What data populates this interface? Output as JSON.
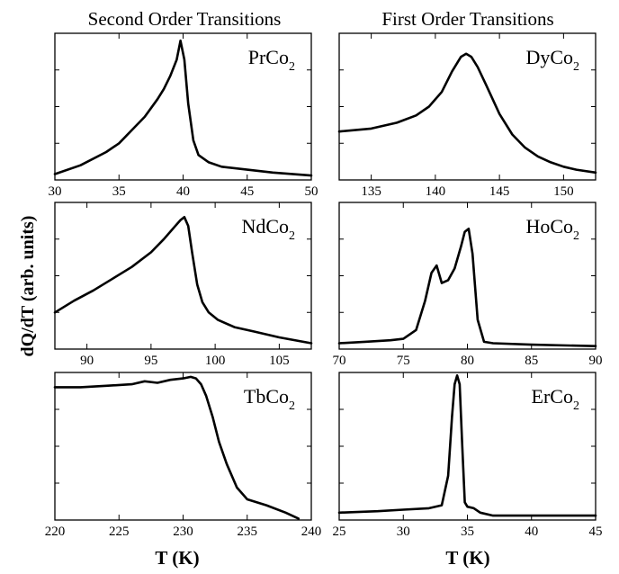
{
  "figure": {
    "column_titles": [
      "Second Order Transitions",
      "First Order Transitions"
    ],
    "y_label": "dQ/dT (arb. units)",
    "x_label": "T (K)"
  },
  "chart_data": [
    {
      "type": "line",
      "panel": "PrCo2",
      "label_main": "PrCo",
      "label_sub": "2",
      "xlim": [
        30,
        50
      ],
      "xticks": [
        30,
        35,
        40,
        45,
        50
      ],
      "ylim": [
        0,
        1
      ],
      "grid": false,
      "x": [
        30,
        32,
        34,
        35,
        36,
        37,
        38,
        38.5,
        39,
        39.5,
        39.8,
        40.1,
        40.4,
        40.8,
        41.2,
        42,
        43,
        45,
        47,
        50
      ],
      "y": [
        0.04,
        0.1,
        0.19,
        0.25,
        0.34,
        0.43,
        0.55,
        0.62,
        0.71,
        0.82,
        0.95,
        0.82,
        0.52,
        0.27,
        0.17,
        0.12,
        0.09,
        0.07,
        0.05,
        0.03
      ]
    },
    {
      "type": "line",
      "panel": "DyCo2",
      "label_main": "DyCo",
      "label_sub": "2",
      "xlim": [
        132.5,
        152.5
      ],
      "xticks": [
        135,
        140,
        145,
        150
      ],
      "ylim": [
        0,
        1
      ],
      "grid": false,
      "x": [
        132.5,
        135,
        137,
        138.5,
        139.5,
        140.5,
        141.3,
        142,
        142.4,
        142.8,
        143.3,
        144,
        145,
        146,
        147,
        148,
        149,
        150,
        151,
        152.5
      ],
      "y": [
        0.33,
        0.35,
        0.39,
        0.44,
        0.5,
        0.6,
        0.74,
        0.84,
        0.86,
        0.84,
        0.77,
        0.64,
        0.45,
        0.31,
        0.22,
        0.16,
        0.12,
        0.09,
        0.07,
        0.05
      ]
    },
    {
      "type": "line",
      "panel": "NdCo2",
      "label_main": "NdCo",
      "label_sub": "2",
      "xlim": [
        87.5,
        107.5
      ],
      "xticks": [
        90,
        95,
        100,
        105
      ],
      "ylim": [
        0,
        1
      ],
      "grid": false,
      "x": [
        87.5,
        89,
        90.5,
        92,
        93.5,
        95,
        96,
        96.8,
        97.3,
        97.6,
        97.9,
        98.2,
        98.6,
        99,
        99.5,
        100.2,
        101.5,
        103,
        105,
        107.5
      ],
      "y": [
        0.25,
        0.33,
        0.4,
        0.48,
        0.56,
        0.66,
        0.75,
        0.83,
        0.88,
        0.9,
        0.84,
        0.66,
        0.44,
        0.32,
        0.25,
        0.2,
        0.15,
        0.12,
        0.08,
        0.04
      ]
    },
    {
      "type": "line",
      "panel": "HoCo2",
      "label_main": "HoCo",
      "label_sub": "2",
      "xlim": [
        70,
        90
      ],
      "xticks": [
        70,
        75,
        80,
        85,
        90
      ],
      "ylim": [
        0,
        1
      ],
      "grid": false,
      "x": [
        70,
        72,
        74,
        75,
        76,
        76.7,
        77.2,
        77.6,
        78,
        78.5,
        79,
        79.5,
        79.8,
        80.1,
        80.4,
        80.8,
        81.3,
        82,
        85,
        90
      ],
      "y": [
        0.04,
        0.05,
        0.06,
        0.07,
        0.13,
        0.33,
        0.52,
        0.57,
        0.45,
        0.47,
        0.55,
        0.7,
        0.8,
        0.82,
        0.65,
        0.2,
        0.05,
        0.04,
        0.03,
        0.02
      ]
    },
    {
      "type": "line",
      "panel": "TbCo2",
      "label_main": "TbCo",
      "label_sub": "2",
      "xlim": [
        220,
        240
      ],
      "xticks": [
        220,
        225,
        230,
        235,
        240
      ],
      "ylim": [
        0,
        1
      ],
      "grid": false,
      "x": [
        220,
        222,
        224,
        226,
        227,
        228,
        229,
        230,
        230.6,
        231,
        231.4,
        231.8,
        232.3,
        232.8,
        233.4,
        234.2,
        235,
        236.5,
        238,
        239
      ],
      "y": [
        0.9,
        0.9,
        0.91,
        0.92,
        0.94,
        0.93,
        0.95,
        0.96,
        0.97,
        0.96,
        0.92,
        0.84,
        0.7,
        0.53,
        0.38,
        0.22,
        0.14,
        0.1,
        0.05,
        0.01
      ]
    },
    {
      "type": "line",
      "panel": "ErCo2",
      "label_main": "ErCo",
      "label_sub": "2",
      "xlim": [
        25,
        45
      ],
      "xticks": [
        25,
        30,
        35,
        40,
        45
      ],
      "ylim": [
        0,
        1
      ],
      "grid": false,
      "x": [
        25,
        28,
        30,
        32,
        33,
        33.5,
        33.8,
        34,
        34.2,
        34.4,
        34.6,
        34.8,
        35,
        35.5,
        36,
        37,
        40,
        45
      ],
      "y": [
        0.05,
        0.06,
        0.07,
        0.08,
        0.1,
        0.3,
        0.7,
        0.92,
        0.98,
        0.92,
        0.5,
        0.12,
        0.09,
        0.08,
        0.05,
        0.03,
        0.03,
        0.03
      ]
    }
  ]
}
